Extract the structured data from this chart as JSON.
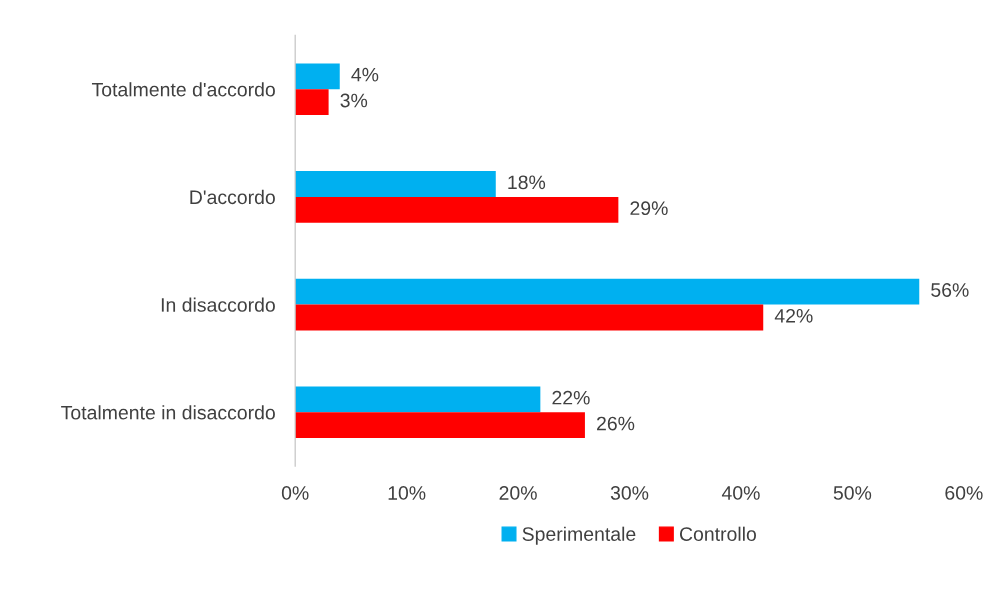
{
  "chart_data": {
    "type": "bar",
    "orientation": "horizontal",
    "categories": [
      "Totalmente d'accordo",
      "D'accordo",
      "In disaccordo",
      "Totalmente in disaccordo"
    ],
    "series": [
      {
        "name": "Sperimentale",
        "color": "#00b0f0",
        "values": [
          4,
          18,
          56,
          22
        ],
        "value_labels": [
          "4%",
          "18%",
          "56%",
          "22%"
        ]
      },
      {
        "name": "Controllo",
        "color": "#ff0000",
        "values": [
          3,
          29,
          42,
          26
        ],
        "value_labels": [
          "3%",
          "29%",
          "42%",
          "26%"
        ]
      }
    ],
    "xlim": [
      0,
      60
    ],
    "xticks": [
      {
        "value": 0,
        "label": "0%"
      },
      {
        "value": 10,
        "label": "10%"
      },
      {
        "value": 20,
        "label": "20%"
      },
      {
        "value": 30,
        "label": "30%"
      },
      {
        "value": 40,
        "label": "40%"
      },
      {
        "value": 50,
        "label": "50%"
      },
      {
        "value": 60,
        "label": "60%"
      }
    ],
    "grid": false,
    "legend": "bottom"
  }
}
